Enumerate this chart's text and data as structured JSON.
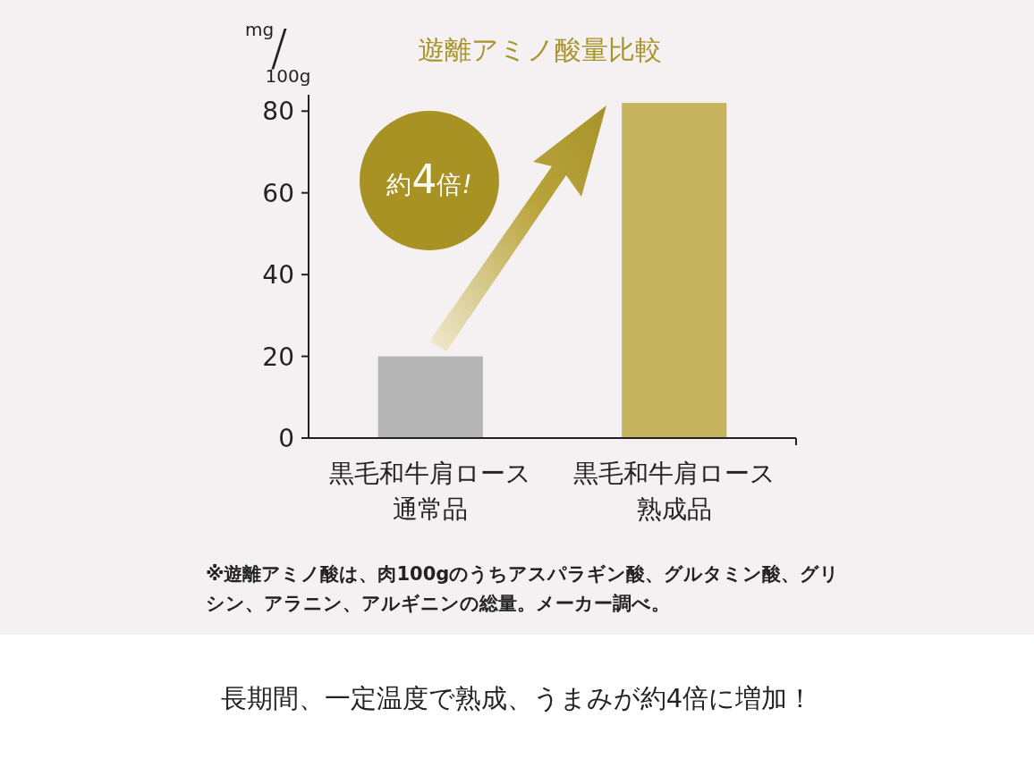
{
  "chart_data": {
    "type": "bar",
    "title": "遊離アミノ酸量比較",
    "ylabel": "mg/100g",
    "categories": [
      "黒毛和牛肩ロース通常品",
      "黒毛和牛肩ロース熟成品"
    ],
    "values": [
      20,
      82
    ],
    "colors": [
      "#b5b5b5",
      "#c6b35e"
    ],
    "ylim": [
      0,
      84
    ],
    "yticks": [
      0,
      20,
      40,
      60,
      80
    ],
    "grid": false,
    "annotations": [
      "約4倍!",
      "※遊離アミノ酸は、肉100gのうちアスパラギン酸、グルタミン酸、グリシン、アラニン、アルギニンの総量。メーカー調べ。",
      "長期間、一定温度で熟成、うまみが約4倍に増加！"
    ]
  }
}
